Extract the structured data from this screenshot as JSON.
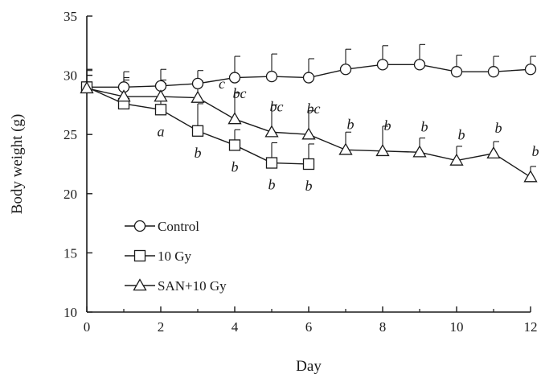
{
  "chart_data": {
    "type": "line",
    "xlabel": "Day",
    "ylabel": "Body weight (g)",
    "xlim": [
      0,
      12
    ],
    "ylim": [
      10,
      35
    ],
    "xticks": [
      0,
      2,
      4,
      6,
      8,
      10,
      12
    ],
    "yticks": [
      10,
      15,
      20,
      25,
      30,
      35
    ],
    "grid": false,
    "legend": "bottom-left",
    "series": [
      {
        "name": "Control",
        "marker": "circle",
        "x": [
          0,
          1,
          2,
          3,
          4,
          5,
          6,
          7,
          8,
          9,
          10,
          11,
          12
        ],
        "values": [
          29.0,
          29.0,
          29.1,
          29.3,
          29.8,
          29.9,
          29.8,
          30.5,
          30.9,
          30.9,
          30.3,
          30.3,
          30.5
        ],
        "error": [
          1.5,
          1.3,
          1.4,
          1.1,
          1.8,
          1.9,
          1.6,
          1.7,
          1.6,
          1.7,
          1.4,
          1.3,
          1.1
        ]
      },
      {
        "name": "10 Gy",
        "marker": "square",
        "x": [
          0,
          1,
          2,
          3,
          4,
          5,
          6
        ],
        "values": [
          29.0,
          27.6,
          27.1,
          25.3,
          24.1,
          22.6,
          22.5
        ],
        "error": [
          1.4,
          2.2,
          2.2,
          2.3,
          1.3,
          1.7,
          1.7
        ]
      },
      {
        "name": "SAN+10 Gy",
        "marker": "triangle",
        "x": [
          0,
          1,
          2,
          3,
          4,
          5,
          6,
          7,
          8,
          9,
          10,
          11,
          12
        ],
        "values": [
          28.9,
          28.2,
          28.2,
          28.1,
          26.3,
          25.2,
          25.0,
          23.7,
          23.6,
          23.5,
          22.8,
          23.4,
          21.4
        ],
        "error": [
          1.6,
          1.4,
          1.4,
          1.4,
          2.2,
          2.3,
          2.0,
          1.5,
          2.1,
          1.2,
          1.2,
          1.0,
          0.9
        ]
      }
    ],
    "annotations": [
      {
        "text": "a",
        "x": 2,
        "y": 27.1,
        "pos": "below"
      },
      {
        "text": "c",
        "x": 3,
        "y": 29.3,
        "pos": "right"
      },
      {
        "text": "b",
        "x": 3,
        "y": 25.3,
        "pos": "below"
      },
      {
        "text": "bc",
        "x": 4,
        "y": 26.3,
        "pos": "above"
      },
      {
        "text": "b",
        "x": 4,
        "y": 24.1,
        "pos": "below"
      },
      {
        "text": "bc",
        "x": 5,
        "y": 25.2,
        "pos": "above"
      },
      {
        "text": "b",
        "x": 5,
        "y": 22.6,
        "pos": "below"
      },
      {
        "text": "bc",
        "x": 6,
        "y": 25.0,
        "pos": "above"
      },
      {
        "text": "b",
        "x": 6,
        "y": 22.5,
        "pos": "below"
      },
      {
        "text": "b",
        "x": 7,
        "y": 23.7,
        "pos": "above"
      },
      {
        "text": "b",
        "x": 8,
        "y": 23.6,
        "pos": "above"
      },
      {
        "text": "b",
        "x": 9,
        "y": 23.5,
        "pos": "above"
      },
      {
        "text": "b",
        "x": 10,
        "y": 22.8,
        "pos": "above"
      },
      {
        "text": "b",
        "x": 11,
        "y": 23.4,
        "pos": "above"
      },
      {
        "text": "b",
        "x": 12,
        "y": 21.4,
        "pos": "above"
      }
    ]
  }
}
